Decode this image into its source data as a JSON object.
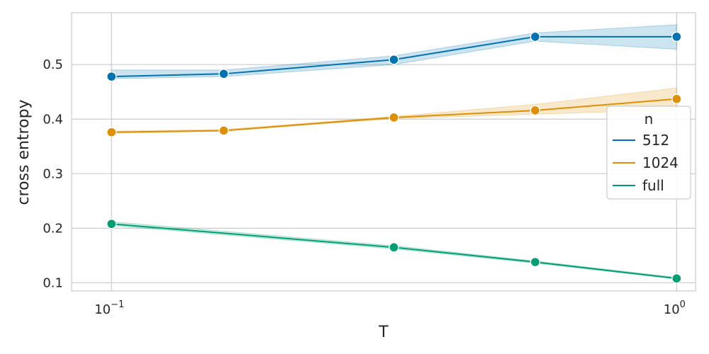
{
  "chart_data": {
    "type": "line",
    "title": "",
    "xlabel": "T",
    "ylabel": "cross entropy",
    "xscale": "log",
    "xlim": [
      0.085,
      1.08
    ],
    "ylim": [
      0.085,
      0.595
    ],
    "x": [
      0.1,
      0.2,
      0.3,
      0.4,
      0.5,
      0.6,
      0.7,
      0.8,
      0.9,
      1.0
    ],
    "x_tick_labels": [
      {
        "value": 0.1,
        "base": "10",
        "exp": "−1"
      },
      {
        "value": 1.0,
        "base": "10",
        "exp": "0"
      }
    ],
    "y_ticks": [
      0.1,
      0.2,
      0.3,
      0.4,
      0.5
    ],
    "y_tick_labels": [
      "0.1",
      "0.2",
      "0.3",
      "0.4",
      "0.5"
    ],
    "grid": true,
    "legend": {
      "title": "n",
      "position": "right"
    },
    "series": [
      {
        "name": "512",
        "color": "#0173b2",
        "points": [
          {
            "x": 0.1,
            "y": 0.478,
            "lo": 0.474,
            "hi": 0.49
          },
          {
            "x": 0.158,
            "y": 0.483,
            "lo": 0.478,
            "hi": 0.49
          },
          {
            "x": 0.316,
            "y": 0.509,
            "lo": 0.5,
            "hi": 0.516
          },
          {
            "x": 0.562,
            "y": 0.551,
            "lo": 0.543,
            "hi": 0.558
          },
          {
            "x": 1.0,
            "y": 0.551,
            "lo": 0.528,
            "hi": 0.573
          }
        ]
      },
      {
        "name": "1024",
        "color": "#de8f05",
        "points": [
          {
            "x": 0.1,
            "y": 0.376,
            "lo": 0.374,
            "hi": 0.378
          },
          {
            "x": 0.158,
            "y": 0.379,
            "lo": 0.378,
            "hi": 0.381
          },
          {
            "x": 0.316,
            "y": 0.403,
            "lo": 0.401,
            "hi": 0.405
          },
          {
            "x": 0.562,
            "y": 0.416,
            "lo": 0.409,
            "hi": 0.427
          },
          {
            "x": 1.0,
            "y": 0.437,
            "lo": 0.417,
            "hi": 0.457
          }
        ]
      },
      {
        "name": "full",
        "color": "#029e73",
        "points": [
          {
            "x": 0.1,
            "y": 0.208,
            "lo": 0.205,
            "hi": 0.212
          },
          {
            "x": 0.316,
            "y": 0.165,
            "lo": 0.162,
            "hi": 0.168
          },
          {
            "x": 0.562,
            "y": 0.138,
            "lo": 0.136,
            "hi": 0.14
          },
          {
            "x": 1.0,
            "y": 0.108,
            "lo": 0.107,
            "hi": 0.11
          }
        ]
      }
    ]
  }
}
